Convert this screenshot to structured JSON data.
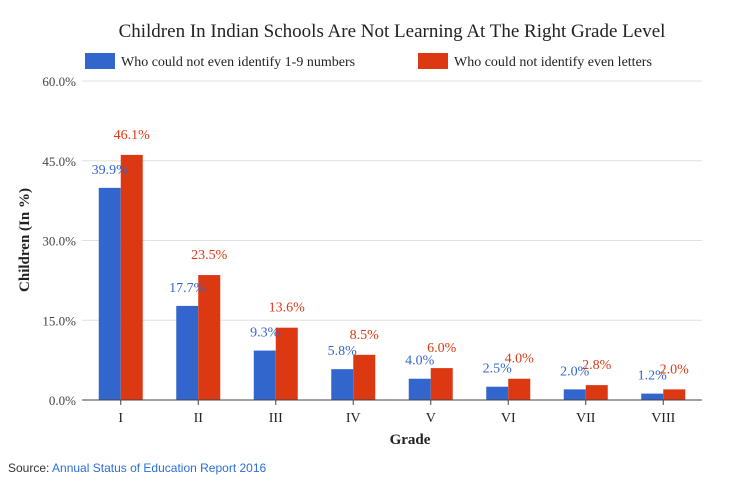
{
  "colors": {
    "series1": "#3366cc",
    "series2": "#dc3912",
    "grid": "#e0e0e0",
    "axis": "#444444"
  },
  "source": {
    "label": "Source:",
    "link_text": "Annual Status of Education Report 2016"
  },
  "chart_data": {
    "type": "bar",
    "title": "Children In Indian Schools Are Not Learning At The Right Grade Level",
    "xlabel": "Grade",
    "ylabel": "Children (In %)",
    "ylim": [
      0,
      60
    ],
    "yticks": [
      "0.0%",
      "15.0%",
      "30.0%",
      "45.0%",
      "60.0%"
    ],
    "ytick_values": [
      0,
      15,
      30,
      45,
      60
    ],
    "grid": true,
    "legend_position": "top",
    "categories": [
      "I",
      "II",
      "III",
      "IV",
      "V",
      "VI",
      "VII",
      "VIII"
    ],
    "series": [
      {
        "name": "Who could not even identify 1-9 numbers",
        "values": [
          39.9,
          17.7,
          9.3,
          5.8,
          4.0,
          2.5,
          2.0,
          1.2
        ],
        "labels": [
          "39.9%",
          "17.7%",
          "9.3%",
          "5.8%",
          "4.0%",
          "2.5%",
          "2.0%",
          "1.2%"
        ]
      },
      {
        "name": "Who could not identify even letters",
        "values": [
          46.1,
          23.5,
          13.6,
          8.5,
          6.0,
          4.0,
          2.8,
          2.0
        ],
        "labels": [
          "46.1%",
          "23.5%",
          "13.6%",
          "8.5%",
          "6.0%",
          "4.0%",
          "2.8%",
          "2.0%"
        ]
      }
    ]
  }
}
